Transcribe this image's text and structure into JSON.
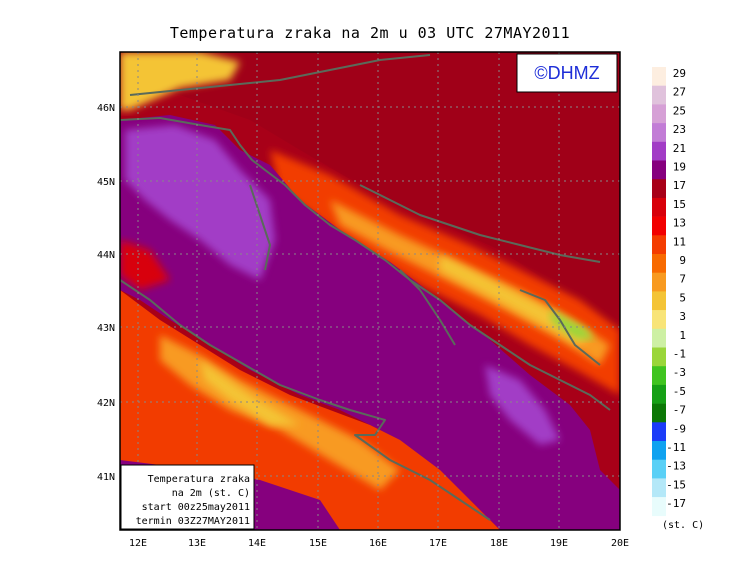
{
  "title": "Temperatura zraka na 2m u 03 UTC 27MAY2011",
  "logo": "©DHMZ",
  "info_box": {
    "line1": "Temperatura zraka",
    "line2": "na 2m (st. C)",
    "line3": "start 00z25may2011",
    "line4": "termin 03Z27MAY2011"
  },
  "axes": {
    "lon_labels": [
      "12E",
      "13E",
      "14E",
      "15E",
      "16E",
      "17E",
      "18E",
      "19E",
      "20E"
    ],
    "lat_labels": [
      "46N",
      "45N",
      "44N",
      "43N",
      "42N",
      "41N"
    ]
  },
  "legend": {
    "unit": "(st. C)",
    "levels": [
      "29",
      "27",
      "25",
      "23",
      "21",
      "19",
      "17",
      "15",
      "13",
      "11",
      "9",
      "7",
      "5",
      "3",
      "1",
      "-1",
      "-3",
      "-5",
      "-7",
      "-9",
      "-11",
      "-13",
      "-15",
      "-17"
    ],
    "colors": [
      "#fdeee0",
      "#e0c2dc",
      "#d6a0d6",
      "#c27cd6",
      "#a23cc6",
      "#86007e",
      "#a80018",
      "#d8000a",
      "#f20000",
      "#f43c00",
      "#f86a00",
      "#f89a20",
      "#f4c436",
      "#f8e478",
      "#cdf0a4",
      "#9ad63a",
      "#40c420",
      "#16a016",
      "#0c7806",
      "#1c3cf8",
      "#10a2f0",
      "#5ad0f6",
      "#b4e8f8",
      "#e8fcfc"
    ]
  }
}
